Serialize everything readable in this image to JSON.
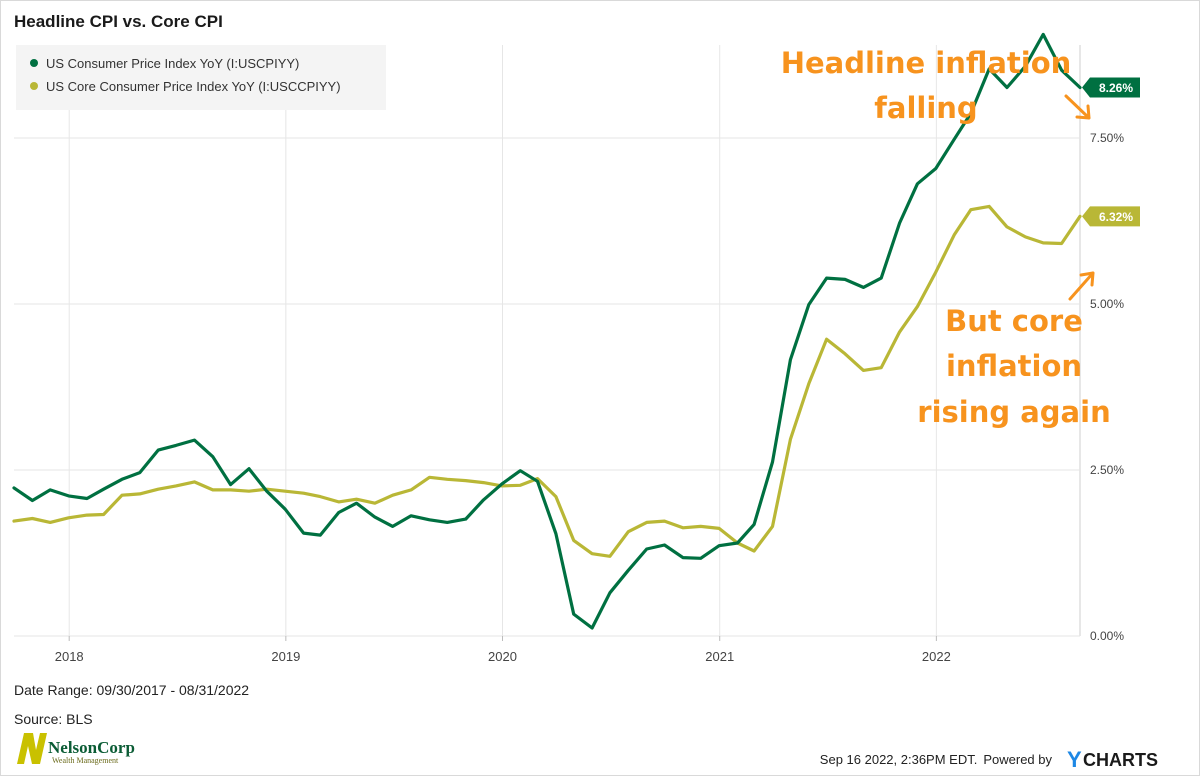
{
  "chart_data": {
    "type": "line",
    "title": "Headline CPI vs. Core CPI",
    "x_dates": [
      "2017-09-30",
      "2017-10-31",
      "2017-11-30",
      "2017-12-31",
      "2018-01-31",
      "2018-02-28",
      "2018-03-31",
      "2018-04-30",
      "2018-05-31",
      "2018-06-30",
      "2018-07-31",
      "2018-08-31",
      "2018-09-30",
      "2018-10-31",
      "2018-11-30",
      "2018-12-31",
      "2019-01-31",
      "2019-02-28",
      "2019-03-31",
      "2019-04-30",
      "2019-05-31",
      "2019-06-30",
      "2019-07-31",
      "2019-08-31",
      "2019-09-30",
      "2019-10-31",
      "2019-11-30",
      "2019-12-31",
      "2020-01-31",
      "2020-02-29",
      "2020-03-31",
      "2020-04-30",
      "2020-05-31",
      "2020-06-30",
      "2020-07-31",
      "2020-08-31",
      "2020-09-30",
      "2020-10-31",
      "2020-11-30",
      "2020-12-31",
      "2021-01-31",
      "2021-02-28",
      "2021-03-31",
      "2021-04-30",
      "2021-05-31",
      "2021-06-30",
      "2021-07-31",
      "2021-08-31",
      "2021-09-30",
      "2021-10-31",
      "2021-11-30",
      "2021-12-31",
      "2022-01-31",
      "2022-02-28",
      "2022-03-31",
      "2022-04-30",
      "2022-05-31",
      "2022-06-30",
      "2022-07-31",
      "2022-08-31"
    ],
    "series": [
      {
        "name": "US Consumer Price Index YoY (I:USCPIYY)",
        "color": "#007041",
        "values": [
          2.23,
          2.04,
          2.2,
          2.11,
          2.07,
          2.21,
          2.36,
          2.46,
          2.8,
          2.87,
          2.95,
          2.7,
          2.28,
          2.52,
          2.18,
          1.91,
          1.55,
          1.52,
          1.86,
          2.0,
          1.79,
          1.65,
          1.81,
          1.75,
          1.71,
          1.76,
          2.05,
          2.29,
          2.49,
          2.33,
          1.54,
          0.33,
          0.12,
          0.65,
          0.99,
          1.31,
          1.37,
          1.18,
          1.17,
          1.36,
          1.4,
          1.68,
          2.62,
          4.16,
          4.99,
          5.39,
          5.37,
          5.25,
          5.39,
          6.22,
          6.81,
          7.04,
          7.48,
          7.87,
          8.54,
          8.26,
          8.58,
          9.06,
          8.52,
          8.26
        ],
        "last_label": "8.26%"
      },
      {
        "name": "US Core Consumer Price Index YoY (I:USCCPIYY)",
        "color": "#b9b736",
        "values": [
          1.73,
          1.77,
          1.71,
          1.78,
          1.82,
          1.83,
          2.12,
          2.14,
          2.21,
          2.26,
          2.32,
          2.2,
          2.2,
          2.18,
          2.21,
          2.18,
          2.15,
          2.1,
          2.02,
          2.06,
          2.0,
          2.12,
          2.2,
          2.39,
          2.36,
          2.34,
          2.31,
          2.26,
          2.27,
          2.37,
          2.1,
          1.44,
          1.24,
          1.2,
          1.57,
          1.71,
          1.73,
          1.63,
          1.65,
          1.62,
          1.4,
          1.28,
          1.65,
          2.96,
          3.8,
          4.47,
          4.25,
          4.0,
          4.04,
          4.58,
          4.96,
          5.48,
          6.04,
          6.42,
          6.47,
          6.16,
          6.01,
          5.92,
          5.91,
          6.32
        ],
        "last_label": "6.32%"
      }
    ],
    "y_axis": {
      "min": 0.0,
      "max": 8.9,
      "ticks": [
        "0.00%",
        "2.50%",
        "5.00%",
        "7.50%"
      ],
      "tick_values": [
        0,
        2.5,
        5,
        7.5
      ],
      "position": "right"
    },
    "x_axis": {
      "ticks": [
        "2018",
        "2019",
        "2020",
        "2021",
        "2022"
      ],
      "tick_dates": [
        "2018-01-01",
        "2019-01-01",
        "2020-01-01",
        "2021-01-01",
        "2022-01-01"
      ],
      "range": [
        "2017-09-30",
        "2022-08-31"
      ]
    },
    "grid": true,
    "legend": "top-left"
  },
  "annotations": {
    "headline_line1": "Headline inflation",
    "headline_line2": "falling",
    "core_line1": "But core",
    "core_line2": "inflation",
    "core_line3": "rising again",
    "color": "#f7931e"
  },
  "footer": {
    "date_range": "Date Range: 09/30/2017 - 08/31/2022",
    "source": "Source: BLS",
    "timestamp": "Sep 16 2022, 2:36PM EDT.",
    "powered_by": "Powered by",
    "brand_y": "Y",
    "brand_rest": "CHARTS"
  },
  "logo": {
    "name": "NelsonCorp",
    "sub": "Wealth Management"
  }
}
